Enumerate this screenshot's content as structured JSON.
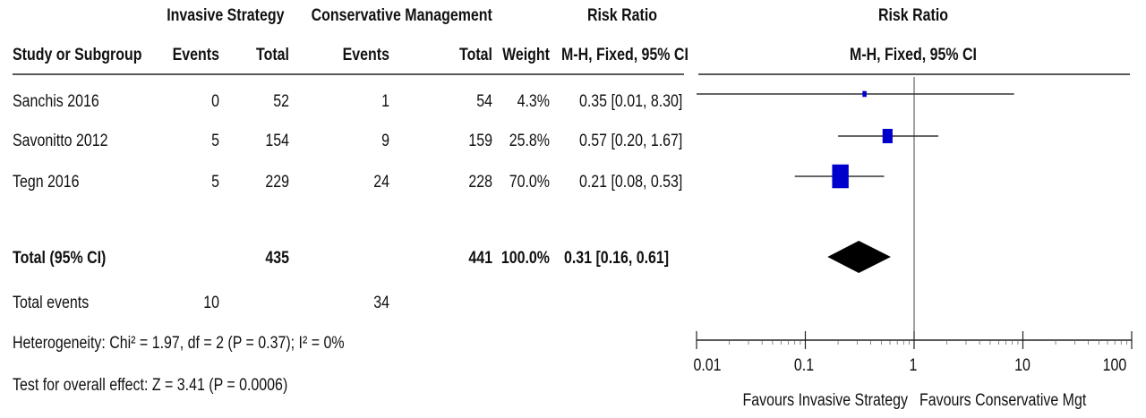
{
  "header": {
    "group1": "Invasive Strategy",
    "group2": "Conservative Management",
    "rr_table": "Risk Ratio",
    "rr_plot": "Risk Ratio",
    "study_col": "Study or Subgroup",
    "events1": "Events",
    "total1": "Total",
    "events2": "Events",
    "total2": "Total",
    "weight": "Weight",
    "method_table": "M-H, Fixed, 95% CI",
    "method_plot": "M-H, Fixed, 95% CI"
  },
  "studies": [
    {
      "name": "Sanchis 2016",
      "events1": "0",
      "total1": "52",
      "events2": "1",
      "total2": "54",
      "weight": "4.3%",
      "ci": "0.35 [0.01, 8.30]"
    },
    {
      "name": "Savonitto 2012",
      "events1": "5",
      "total1": "154",
      "events2": "9",
      "total2": "159",
      "weight": "25.8%",
      "ci": "0.57 [0.20, 1.67]"
    },
    {
      "name": "Tegn 2016",
      "events1": "5",
      "total1": "229",
      "events2": "24",
      "total2": "228",
      "weight": "70.0%",
      "ci": "0.21 [0.08, 0.53]"
    }
  ],
  "total": {
    "label": "Total (95% CI)",
    "total1": "435",
    "total2": "441",
    "weight": "100.0%",
    "ci": "0.31 [0.16, 0.61]"
  },
  "total_events": {
    "label": "Total events",
    "events1": "10",
    "events2": "34"
  },
  "heterogeneity": "Heterogeneity: Chi² = 1.97, df = 2 (P = 0.37); I² = 0%",
  "overall_effect": "Test for overall effect: Z = 3.41 (P = 0.0006)",
  "axis": {
    "ticks": [
      "0.01",
      "0.1",
      "1",
      "10",
      "100"
    ],
    "favours_left": "Favours Invasive Strategy",
    "favours_right": "Favours Conservative Mgt"
  },
  "chart_data": {
    "type": "forest",
    "scale": "log",
    "xlim": [
      0.01,
      100
    ],
    "null_line": 1,
    "colors": {
      "study_marker": "#0000cc",
      "summary": "#000000",
      "lines": "#333333"
    },
    "points": [
      {
        "study": "Sanchis 2016",
        "rr": 0.35,
        "lower": 0.01,
        "upper": 8.3,
        "weight": 4.3
      },
      {
        "study": "Savonitto 2012",
        "rr": 0.57,
        "lower": 0.2,
        "upper": 1.67,
        "weight": 25.8
      },
      {
        "study": "Tegn 2016",
        "rr": 0.21,
        "lower": 0.08,
        "upper": 0.53,
        "weight": 70.0
      }
    ],
    "summary": {
      "rr": 0.31,
      "lower": 0.16,
      "upper": 0.61
    }
  }
}
